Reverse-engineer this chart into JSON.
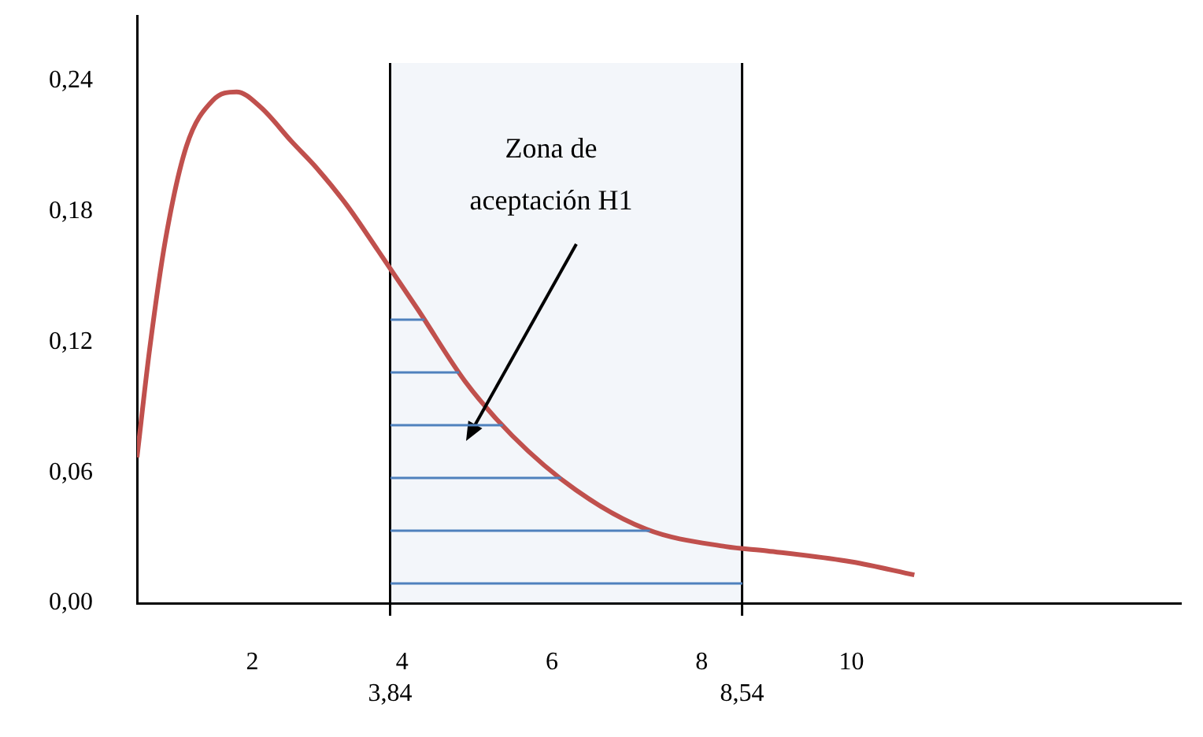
{
  "chart_data": {
    "type": "line",
    "x": [
      0.46,
      0.63,
      0.84,
      1.12,
      1.47,
      1.79,
      2.11,
      2.53,
      2.86,
      3.26,
      3.68,
      4.21,
      4.84,
      5.47,
      6.32,
      7.26,
      8.32,
      8.88,
      10.0,
      10.84
    ],
    "series": [
      {
        "color": "#c0504d",
        "values": [
          0.067,
          0.117,
          0.167,
          0.21,
          0.231,
          0.235,
          0.228,
          0.212,
          0.2,
          0.183,
          0.162,
          0.135,
          0.102,
          0.077,
          0.052,
          0.034,
          0.026,
          0.024,
          0.019,
          0.013
        ]
      }
    ],
    "xlim": [
      0.46,
      14.4
    ],
    "xticks": [
      2,
      4,
      6,
      8,
      10
    ],
    "ylim": [
      0,
      0.27
    ],
    "yticks": [
      {
        "value": 0,
        "label": "0,00"
      },
      {
        "value": 0.06,
        "label": "0,06"
      },
      {
        "value": 0.12,
        "label": "0,12"
      },
      {
        "value": 0.18,
        "label": "0,18"
      },
      {
        "value": 0.24,
        "label": "0,24"
      }
    ],
    "ref_lines": [
      {
        "axis": "x",
        "value": 3.84,
        "label": "3,84",
        "color": "#000000"
      },
      {
        "axis": "x",
        "value": 8.54,
        "label": "8,54",
        "color": "#000000"
      }
    ],
    "bands": [
      {
        "axis": "x",
        "from": 3.84,
        "to": 8.54,
        "color": "#4f81bd"
      }
    ],
    "annotations": [
      "Zona de\naceptación H1"
    ],
    "grid": false,
    "legend": false,
    "marker": "none",
    "line_style": "solid"
  }
}
